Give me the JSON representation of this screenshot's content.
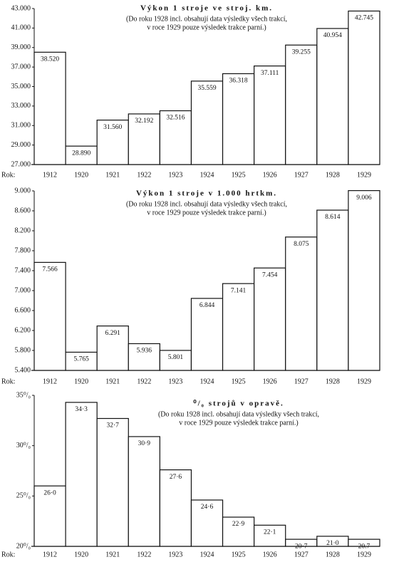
{
  "chart_data": [
    {
      "type": "bar",
      "title": "Výkon 1 stroje ve stroj. km.",
      "subtitle": [
        "(Do roku 1928 incl. obsahují data výsledky všech trakcí,",
        "v roce 1929 pouze výsledek trakce parní.)"
      ],
      "x_label": "Rok:",
      "categories": [
        "1912",
        "1920",
        "1921",
        "1922",
        "1923",
        "1924",
        "1925",
        "1926",
        "1927",
        "1928",
        "1929"
      ],
      "values": [
        38520,
        28890,
        31560,
        32192,
        32516,
        35559,
        36318,
        37111,
        39255,
        40954,
        42745
      ],
      "value_labels": [
        "38.520",
        "28.890",
        "31.560",
        "32.192",
        "32.516",
        "35.559",
        "36.318",
        "37.111",
        "39.255",
        "40.954",
        "42.745"
      ],
      "color": "#ffffff",
      "ylim": [
        27000,
        43000
      ],
      "yticks": [
        {
          "value": 27000,
          "label": "27.000"
        },
        {
          "value": 29000,
          "label": "29.000"
        },
        {
          "value": 31000,
          "label": "31.000"
        },
        {
          "value": 33000,
          "label": "33.000"
        },
        {
          "value": 35000,
          "label": "35.000"
        },
        {
          "value": 37000,
          "label": "37.000"
        },
        {
          "value": 39000,
          "label": "39.000"
        },
        {
          "value": 41000,
          "label": "41.000"
        },
        {
          "value": 43000,
          "label": "43.000"
        }
      ],
      "grid": false
    },
    {
      "type": "bar",
      "title": "Výkon 1 stroje v 1.000 hrtkm.",
      "subtitle": [
        "(Do roku 1928 incl. obsahují data výsledky všech trakcí,",
        "v roce 1929 pouze výsledek trakce parní.)"
      ],
      "x_label": "Rok:",
      "categories": [
        "1912",
        "1920",
        "1921",
        "1922",
        "1923",
        "1924",
        "1925",
        "1926",
        "1927",
        "1928",
        "1929"
      ],
      "values": [
        7566,
        5765,
        6291,
        5936,
        5801,
        6844,
        7141,
        7454,
        8075,
        8614,
        9006
      ],
      "value_labels": [
        "7.566",
        "5.765",
        "6.291",
        "5.936",
        "5.801",
        "6.844",
        "7.141",
        "7.454",
        "8.075",
        "8.614",
        "9.006"
      ],
      "color": "#ffffff",
      "ylim": [
        5400,
        9000
      ],
      "yticks": [
        {
          "value": 5400,
          "label": "5.400"
        },
        {
          "value": 5800,
          "label": "5.800"
        },
        {
          "value": 6200,
          "label": "6.200"
        },
        {
          "value": 6600,
          "label": "6.600"
        },
        {
          "value": 7000,
          "label": "7.000"
        },
        {
          "value": 7400,
          "label": "7.400"
        },
        {
          "value": 7800,
          "label": "7.800"
        },
        {
          "value": 8200,
          "label": "8.200"
        },
        {
          "value": 8600,
          "label": "8.600"
        },
        {
          "value": 9000,
          "label": "9.000"
        }
      ],
      "grid": false
    },
    {
      "type": "bar",
      "title": "⁰/₀ strojů v opravě.",
      "subtitle": [
        "(Do roku 1928 incl. obsahují data výsledky všech trakcí,",
        "v roce 1929 pouze výsledek trakce parní.)"
      ],
      "x_label": "Rok:",
      "categories": [
        "1912",
        "1920",
        "1921",
        "1922",
        "1923",
        "1924",
        "1925",
        "1926",
        "1927",
        "1928",
        "1929"
      ],
      "values": [
        26.0,
        34.3,
        32.7,
        30.9,
        27.6,
        24.6,
        22.9,
        22.1,
        20.7,
        21.0,
        20.7
      ],
      "value_labels": [
        "26·0",
        "34·3",
        "32·7",
        "30·9",
        "27·6",
        "24·6",
        "22·9",
        "22·1",
        "20·7",
        "21·0",
        "20.7"
      ],
      "color": "#ffffff",
      "ylim": [
        20,
        35
      ],
      "yticks": [
        {
          "value": 20,
          "label": "20⁰/₀"
        },
        {
          "value": 25,
          "label": "25⁰/₀"
        },
        {
          "value": 30,
          "label": "30⁰/₀"
        },
        {
          "value": 35,
          "label": "35⁰/₀"
        }
      ],
      "grid": false
    }
  ]
}
